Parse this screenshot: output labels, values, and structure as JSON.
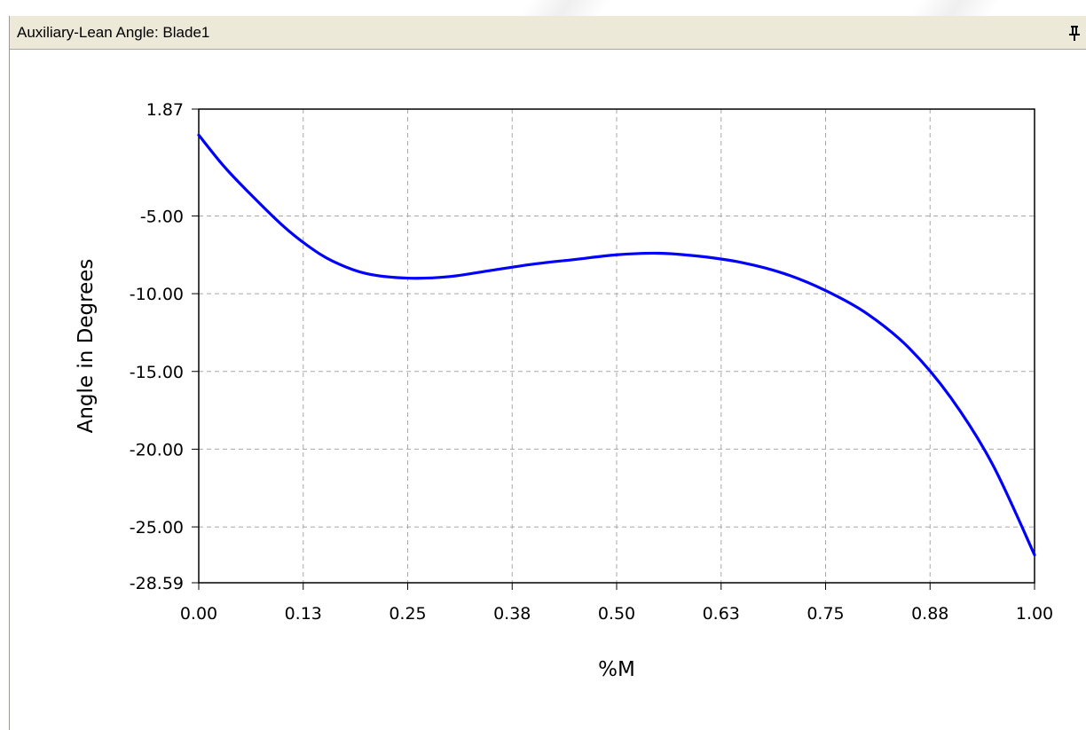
{
  "window": {
    "title": "Auxiliary-Lean Angle: Blade1",
    "pin_icon": "pin-icon"
  },
  "colors": {
    "title_bar": "#ece9d8",
    "curve": "#0000ff",
    "grid": "#a8a8a8",
    "axis": "#000000"
  },
  "chart_data": {
    "type": "line",
    "title": "",
    "xlabel": "%M",
    "ylabel": "Angle in Degrees",
    "xlim": [
      0,
      1
    ],
    "ylim": [
      -28.59,
      1.87
    ],
    "grid": true,
    "x_ticks": [
      0,
      0.125,
      0.25,
      0.375,
      0.5,
      0.625,
      0.75,
      0.875,
      1
    ],
    "x_tick_labels": [
      "0.00",
      "0.13",
      "0.25",
      "0.38",
      "0.50",
      "0.63",
      "0.75",
      "0.88",
      "1.00"
    ],
    "y_ticks": [
      1.87,
      -5,
      -10,
      -15,
      -20,
      -25,
      -28.59
    ],
    "y_tick_labels": [
      "1.87",
      "-5.00",
      "-10.00",
      "-15.00",
      "-20.00",
      "-25.00",
      "-28.59"
    ],
    "series": [
      {
        "color": "#0000ff",
        "x": [
          0,
          0.03,
          0.06,
          0.1,
          0.13,
          0.16,
          0.2,
          0.25,
          0.3,
          0.35,
          0.4,
          0.45,
          0.5,
          0.55,
          0.6,
          0.65,
          0.7,
          0.75,
          0.8,
          0.85,
          0.9,
          0.95,
          1.0
        ],
        "y": [
          0.2,
          -1.8,
          -3.5,
          -5.6,
          -6.9,
          -7.9,
          -8.7,
          -9.0,
          -8.9,
          -8.5,
          -8.1,
          -7.8,
          -7.5,
          -7.4,
          -7.6,
          -8.0,
          -8.7,
          -9.8,
          -11.3,
          -13.5,
          -16.7,
          -21.0,
          -26.8
        ]
      }
    ]
  }
}
